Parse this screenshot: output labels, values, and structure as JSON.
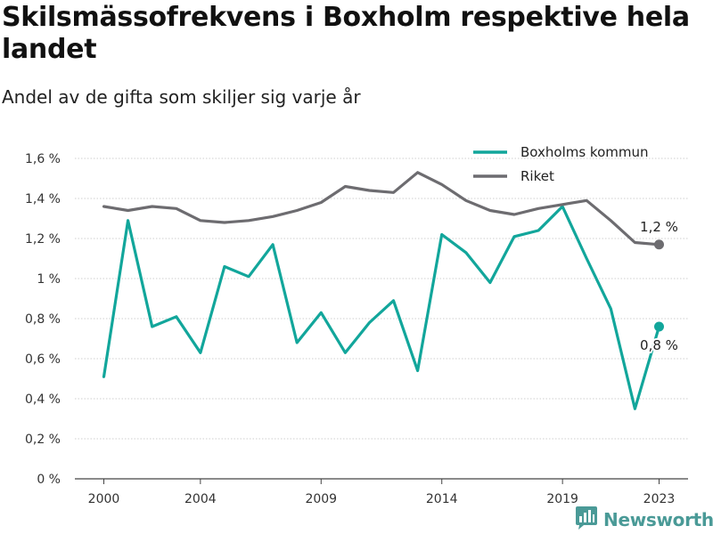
{
  "title": "Skilsmässofrekvens i Boxholm respektive hela landet",
  "subtitle": "Andel av de gifta som skiljer sig varje år",
  "brand": {
    "name": "Newsworthy",
    "icon": "newsworthy-logo-icon",
    "color": "#4a9a97"
  },
  "chart_data": {
    "type": "line",
    "x": [
      2000,
      2001,
      2002,
      2003,
      2004,
      2005,
      2006,
      2007,
      2008,
      2009,
      2010,
      2011,
      2012,
      2013,
      2014,
      2015,
      2016,
      2017,
      2018,
      2019,
      2020,
      2021,
      2022,
      2023
    ],
    "x_ticks": [
      2000,
      2004,
      2009,
      2014,
      2019,
      2023
    ],
    "x_tick_labels": [
      "2000",
      "2004",
      "2009",
      "2014",
      "2019",
      "2023"
    ],
    "xlim": [
      1998.8,
      2024.2
    ],
    "ylim": [
      0,
      1.6
    ],
    "y_ticks": [
      0,
      0.2,
      0.4,
      0.6,
      0.8,
      1.0,
      1.2,
      1.4,
      1.6
    ],
    "y_tick_labels": [
      "0 %",
      "0,2 %",
      "0,4 %",
      "0,6 %",
      "0,8 %",
      "1 %",
      "1,2 %",
      "1,4 %",
      "1,6 %"
    ],
    "grid": "horizontal",
    "legend_position": "top-right",
    "series": [
      {
        "name": "Boxholms kommun",
        "color": "#12a69b",
        "values": [
          0.51,
          1.29,
          0.76,
          0.81,
          0.63,
          1.06,
          1.01,
          1.17,
          0.68,
          0.83,
          0.63,
          0.78,
          0.89,
          0.54,
          1.22,
          1.13,
          0.98,
          1.21,
          1.24,
          1.36,
          1.1,
          0.85,
          0.35,
          0.76
        ],
        "end_label": "0,8 %"
      },
      {
        "name": "Riket",
        "color": "#6d6c70",
        "values": [
          1.36,
          1.34,
          1.36,
          1.35,
          1.29,
          1.28,
          1.29,
          1.31,
          1.34,
          1.38,
          1.46,
          1.44,
          1.43,
          1.53,
          1.47,
          1.39,
          1.34,
          1.32,
          1.35,
          1.37,
          1.39,
          1.29,
          1.18,
          1.17
        ],
        "end_label": "1,2 %"
      }
    ]
  }
}
